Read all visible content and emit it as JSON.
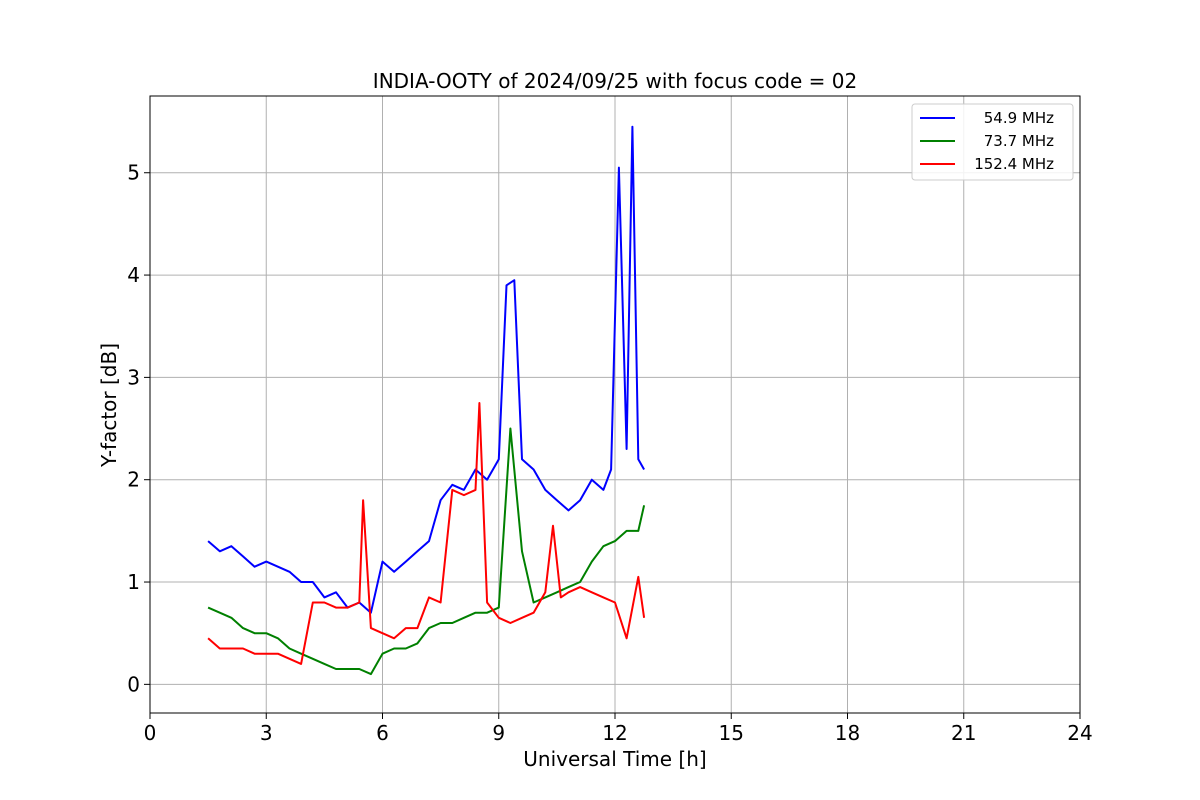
{
  "chart_data": {
    "type": "line",
    "title": "INDIA-OOTY of 2024/09/25 with focus code = 02",
    "xlabel": "Universal Time [h]",
    "ylabel": "Y-factor [dB]",
    "xlim": [
      0,
      24
    ],
    "ylim": [
      -0.28,
      5.75
    ],
    "xticks": [
      0,
      3,
      6,
      9,
      12,
      15,
      18,
      21,
      24
    ],
    "yticks": [
      0,
      1,
      2,
      3,
      4,
      5
    ],
    "grid": true,
    "legend_position": "top-right",
    "series": [
      {
        "name": "54.9 MHz",
        "color": "#0000ff",
        "x": [
          1.5,
          1.8,
          2.1,
          2.4,
          2.7,
          3.0,
          3.3,
          3.6,
          3.9,
          4.2,
          4.5,
          4.8,
          5.1,
          5.4,
          5.7,
          6.0,
          6.3,
          6.6,
          6.9,
          7.2,
          7.5,
          7.8,
          8.1,
          8.4,
          8.7,
          9.0,
          9.2,
          9.4,
          9.6,
          9.9,
          10.2,
          10.5,
          10.8,
          11.1,
          11.4,
          11.7,
          11.9,
          12.1,
          12.3,
          12.45,
          12.6,
          12.75
        ],
        "y": [
          1.4,
          1.3,
          1.35,
          1.25,
          1.15,
          1.2,
          1.15,
          1.1,
          1.0,
          1.0,
          0.85,
          0.9,
          0.75,
          0.8,
          0.7,
          1.2,
          1.1,
          1.2,
          1.3,
          1.4,
          1.8,
          1.95,
          1.9,
          2.1,
          2.0,
          2.2,
          3.9,
          3.95,
          2.2,
          2.1,
          1.9,
          1.8,
          1.7,
          1.8,
          2.0,
          1.9,
          2.1,
          5.05,
          2.3,
          5.45,
          2.2,
          2.1
        ]
      },
      {
        "name": "73.7 MHz",
        "color": "#008000",
        "x": [
          1.5,
          1.8,
          2.1,
          2.4,
          2.7,
          3.0,
          3.3,
          3.6,
          3.9,
          4.2,
          4.5,
          4.8,
          5.1,
          5.4,
          5.7,
          6.0,
          6.3,
          6.6,
          6.9,
          7.2,
          7.5,
          7.8,
          8.1,
          8.4,
          8.7,
          9.0,
          9.3,
          9.6,
          9.9,
          10.2,
          10.5,
          10.8,
          11.1,
          11.4,
          11.7,
          12.0,
          12.3,
          12.6,
          12.75
        ],
        "y": [
          0.75,
          0.7,
          0.65,
          0.55,
          0.5,
          0.5,
          0.45,
          0.35,
          0.3,
          0.25,
          0.2,
          0.15,
          0.15,
          0.15,
          0.1,
          0.3,
          0.35,
          0.35,
          0.4,
          0.55,
          0.6,
          0.6,
          0.65,
          0.7,
          0.7,
          0.75,
          2.5,
          1.3,
          0.8,
          0.85,
          0.9,
          0.95,
          1.0,
          1.2,
          1.35,
          1.4,
          1.5,
          1.5,
          1.75
        ]
      },
      {
        "name": "152.4 MHz",
        "color": "#ff0000",
        "x": [
          1.5,
          1.8,
          2.1,
          2.4,
          2.7,
          3.0,
          3.3,
          3.6,
          3.9,
          4.2,
          4.5,
          4.8,
          5.1,
          5.4,
          5.5,
          5.7,
          6.0,
          6.3,
          6.6,
          6.9,
          7.2,
          7.5,
          7.8,
          8.1,
          8.4,
          8.5,
          8.7,
          9.0,
          9.3,
          9.6,
          9.9,
          10.2,
          10.4,
          10.6,
          10.8,
          11.1,
          11.4,
          11.7,
          12.0,
          12.3,
          12.6,
          12.75
        ],
        "y": [
          0.45,
          0.35,
          0.35,
          0.35,
          0.3,
          0.3,
          0.3,
          0.25,
          0.2,
          0.8,
          0.8,
          0.75,
          0.75,
          0.8,
          1.8,
          0.55,
          0.5,
          0.45,
          0.55,
          0.55,
          0.85,
          0.8,
          1.9,
          1.85,
          1.9,
          2.75,
          0.8,
          0.65,
          0.6,
          0.65,
          0.7,
          0.9,
          1.55,
          0.85,
          0.9,
          0.95,
          0.9,
          0.85,
          0.8,
          0.45,
          1.05,
          0.65
        ]
      }
    ]
  }
}
